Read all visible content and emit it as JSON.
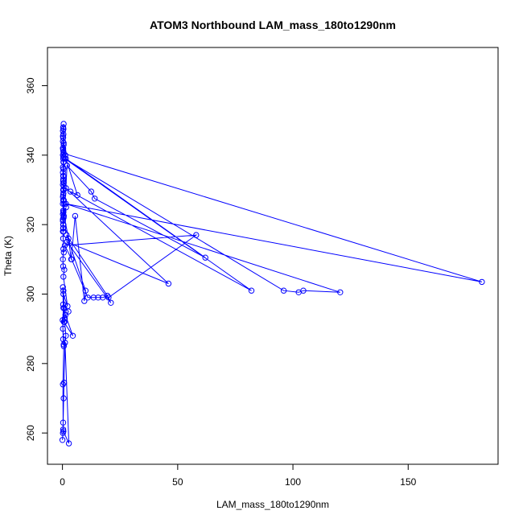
{
  "chart_data": {
    "type": "line",
    "title": "ATOM3 Northbound LAM_mass_180to1290nm",
    "xlabel": "LAM_mass_180to1290nm",
    "ylabel": "Theta (K)",
    "xlim": [
      -6.5,
      189
    ],
    "ylim": [
      251,
      371
    ],
    "xticks": [
      0,
      50,
      100,
      150
    ],
    "yticks": [
      260,
      280,
      300,
      320,
      340,
      360
    ],
    "xtick_labels": [
      "0",
      "50",
      "100",
      "150"
    ],
    "ytick_labels": [
      "260",
      "280",
      "300",
      "320",
      "340",
      "360"
    ],
    "grid": false,
    "legend": "none",
    "series": [
      {
        "color": "#0000ff",
        "markers": "open-circle",
        "x": [
          0.0,
          0.2,
          0.3,
          0.5,
          0.7,
          1.1,
          2.8,
          0.4,
          0.3,
          0.2,
          0.6,
          1.5,
          0.9,
          0.4,
          1.0,
          2.6,
          0.3,
          0.2,
          0.4,
          0.8,
          1.3,
          4.5,
          0.6,
          0.1,
          0.3,
          0.5,
          0.2,
          0.4,
          2.2,
          0.4,
          0.8,
          0.3,
          0.2,
          0.4,
          0.6,
          0.3,
          0.2,
          0.4,
          0.2,
          0.3,
          0.5,
          1.6,
          0.2,
          0.4,
          0.6,
          0.8,
          0.3,
          0.2,
          0.4,
          0.3,
          0.2,
          0.5,
          0.3,
          0.4,
          0.3,
          0.2,
          0.4,
          0.5,
          0.3,
          0.2,
          0.4,
          0.3,
          0.5,
          0.2,
          1.2,
          0.3,
          0.4,
          0.2,
          0.3,
          0.5,
          0.2,
          0.4,
          0.3,
          0.5,
          0.2,
          0.4,
          0.3,
          0.5,
          0.2,
          0.4,
          0.3,
          0.5,
          0.2,
          0.4,
          0.3,
          0.5,
          0.2,
          0.4,
          0.6,
          0.3,
          2.6,
          3.8,
          5.5,
          9.5,
          10.0,
          1.8,
          20.0,
          58.0,
          1.0,
          4.0,
          11.0,
          13.5,
          15.5,
          17.5,
          19.5,
          21.0,
          2.0,
          46.0,
          1.5,
          2.0,
          12.5,
          14.0,
          62.0,
          1.5,
          6.5,
          3.5,
          82.0,
          1.0,
          96.0,
          102.5,
          104.5,
          120.5,
          1.5,
          182.0,
          0.5,
          0.3
        ],
        "y": [
          258.0,
          260.0,
          263.0,
          270.0,
          274.5,
          286.0,
          257.0,
          260.5,
          261.0,
          274.0,
          285.0,
          288.0,
          292.0,
          296.0,
          293.0,
          295.0,
          297.0,
          302.0,
          301.0,
          296.0,
          294.0,
          288.0,
          292.0,
          292.5,
          287.0,
          285.5,
          290.0,
          300.0,
          296.5,
          305.0,
          307.0,
          308.0,
          310.0,
          313.0,
          312.0,
          316.0,
          318.0,
          320.0,
          321.0,
          319.0,
          322.0,
          325.0,
          323.0,
          324.0,
          322.5,
          326.0,
          327.0,
          328.0,
          329.0,
          330.0,
          331.5,
          332.0,
          333.0,
          334.0,
          332.5,
          335.0,
          336.0,
          338.0,
          339.0,
          340.0,
          341.0,
          342.0,
          343.0,
          344.0,
          340.0,
          345.0,
          346.0,
          347.0,
          348.0,
          349.0,
          342.0,
          338.0,
          334.0,
          330.0,
          326.0,
          322.0,
          320.0,
          318.0,
          321.5,
          323.5,
          328.5,
          331.0,
          336.5,
          339.5,
          341.5,
          343.5,
          345.5,
          347.5,
          327.0,
          324.0,
          316.0,
          310.0,
          322.5,
          298.0,
          301.0,
          317.0,
          299.0,
          317.0,
          314.0,
          310.0,
          299.0,
          299.0,
          299.0,
          299.0,
          299.5,
          297.5,
          315.0,
          303.0,
          330.5,
          337.0,
          329.5,
          327.5,
          310.5,
          339.0,
          328.5,
          329.5,
          301.0,
          339.0,
          301.0,
          300.5,
          301.0,
          300.5,
          326.0,
          303.5,
          340.5,
          319.0
        ]
      }
    ]
  }
}
